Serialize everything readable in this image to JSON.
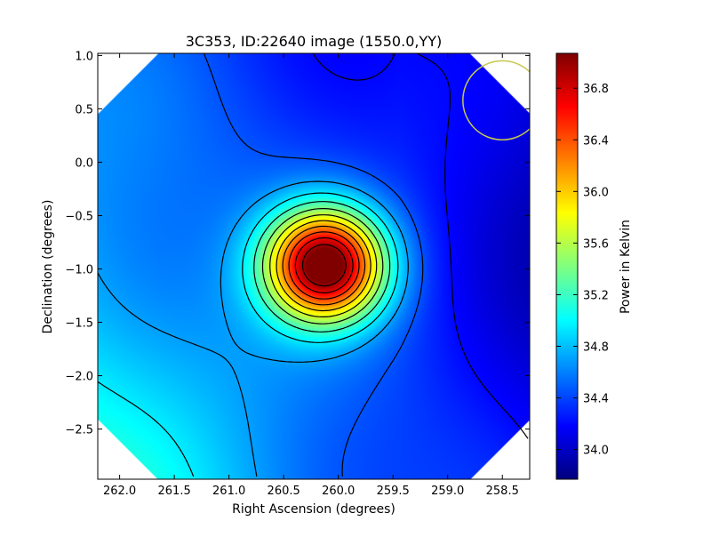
{
  "chart_data": {
    "type": "heatmap",
    "title": "3C353, ID:22640 image (1550.0,YY)",
    "xlabel": "Right Ascension (degrees)",
    "ylabel": "Declination (degrees)",
    "xlim": [
      262.2,
      258.25
    ],
    "ylim": [
      -2.97,
      1.02
    ],
    "x_ticks": [
      262.0,
      261.5,
      261.0,
      260.5,
      260.0,
      259.5,
      259.0,
      258.5
    ],
    "x_tick_labels": [
      "262.0",
      "261.5",
      "261.0",
      "260.5",
      "260.0",
      "259.5",
      "259.0",
      "258.5"
    ],
    "y_ticks": [
      1.0,
      0.5,
      0.0,
      -0.5,
      -1.0,
      -1.5,
      -2.0,
      -2.5
    ],
    "y_tick_labels": [
      "1.0",
      "0.5",
      "0.0",
      "−0.5",
      "−1.0",
      "−1.5",
      "−2.0",
      "−2.5"
    ],
    "colorbar": {
      "label": "Power in Kelvin",
      "range": [
        33.77,
        37.07
      ],
      "ticks": [
        34.0,
        34.4,
        34.8,
        35.2,
        35.6,
        36.0,
        36.4,
        36.8
      ],
      "tick_labels": [
        "34.0",
        "34.4",
        "34.8",
        "35.2",
        "35.6",
        "36.0",
        "36.4",
        "36.8"
      ],
      "colormap": "jet"
    },
    "source_peak": {
      "ra": 260.12,
      "dec": -0.96,
      "value": 37.05
    },
    "background_level": 34.3,
    "beam_circle": {
      "ra": 258.5,
      "dec": 0.58,
      "radius_deg": 0.37,
      "color": "#c8c850"
    },
    "contour_color": "#000000"
  }
}
